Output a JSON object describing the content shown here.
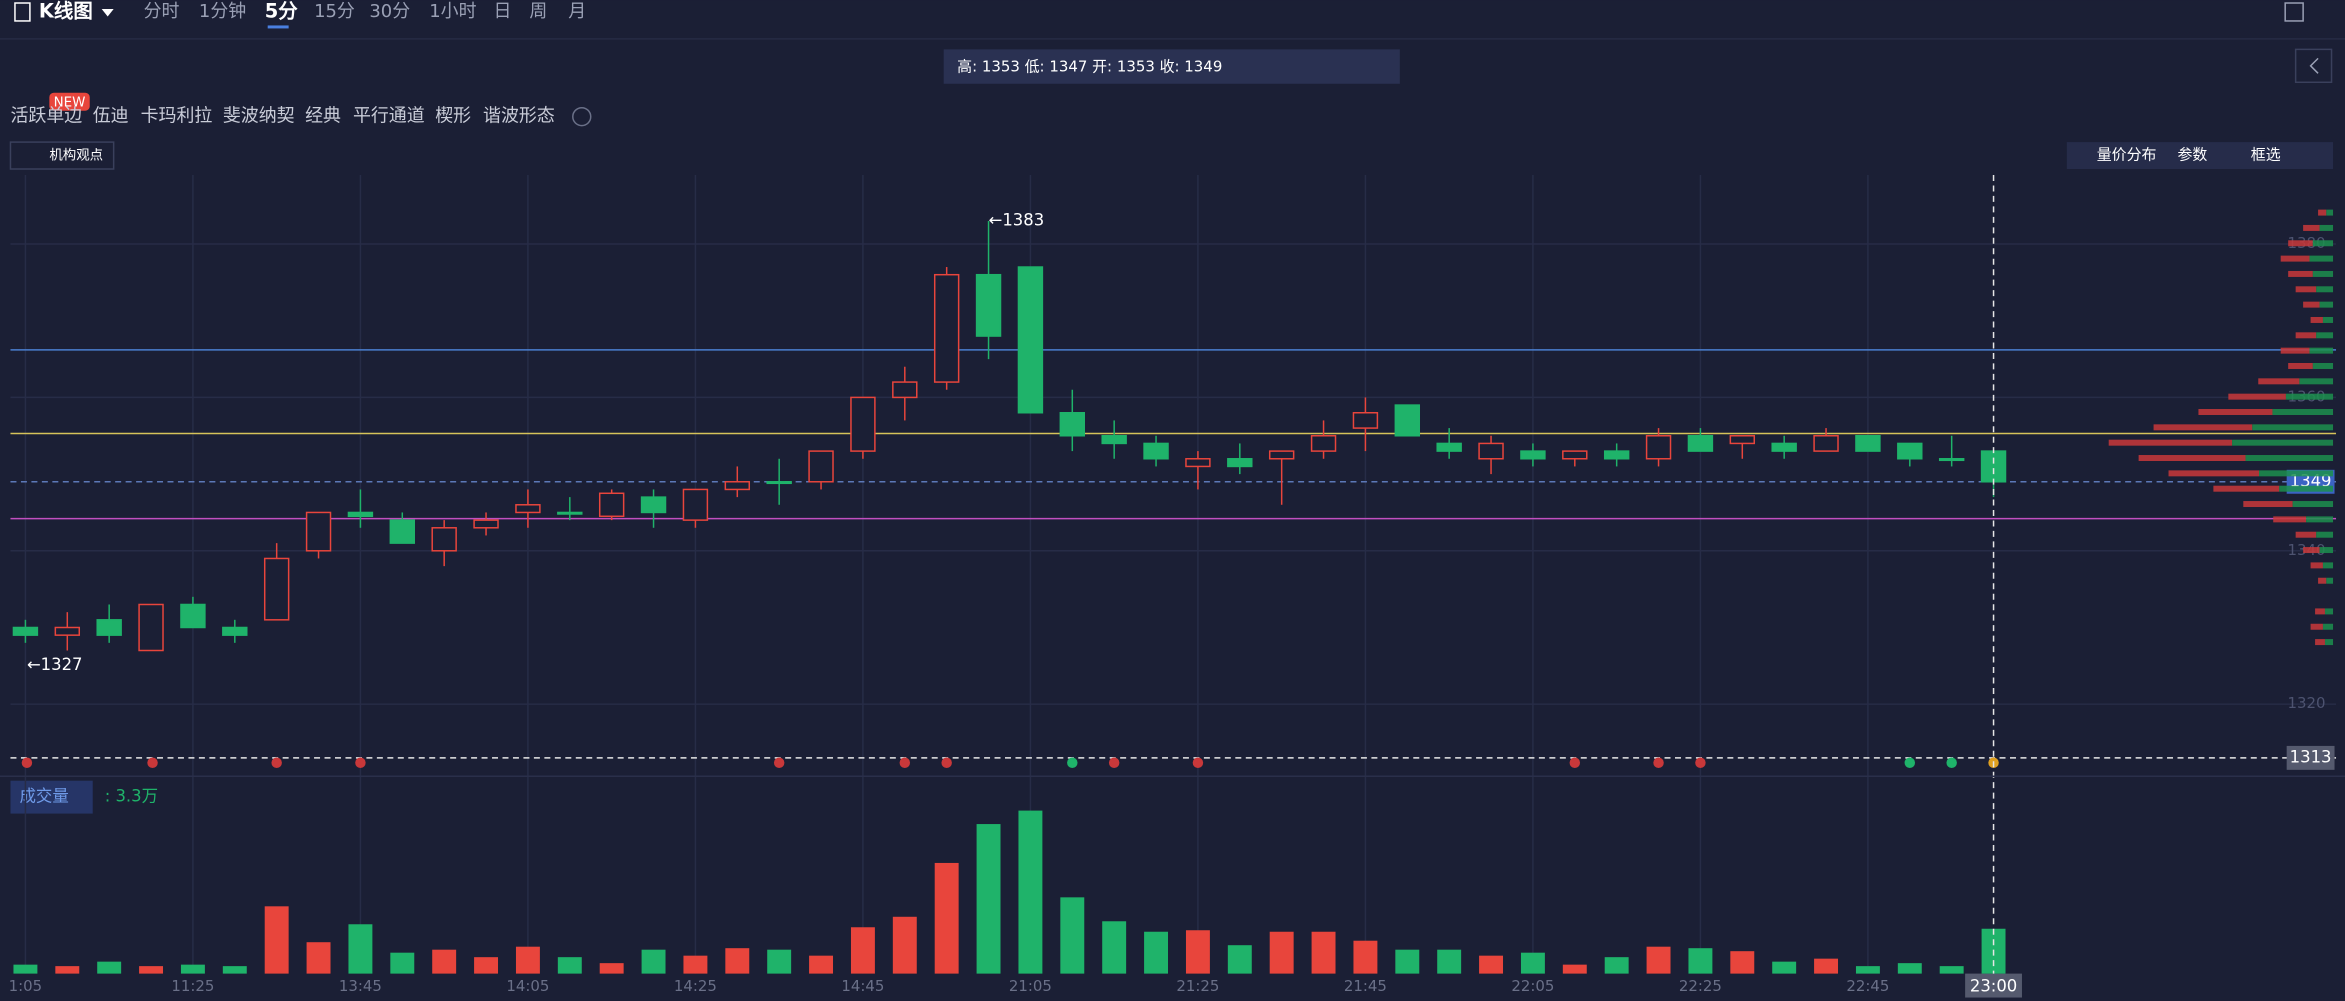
{
  "toolbar": {
    "title": "K线图",
    "tabs": [
      "分时",
      "1分钟",
      "5分",
      "15分",
      "30分",
      "1小时",
      "日",
      "周",
      "月"
    ],
    "active": "5分"
  },
  "info": "高: 1353 低: 1347 开: 1353 收: 1349",
  "indicators": {
    "badge": "NEW",
    "items": [
      "活跃单边",
      "伍迪",
      "卡玛利拉",
      "斐波纳契",
      "经典",
      "平行通道",
      "楔形",
      "谐波形态"
    ]
  },
  "opinion": "机构观点",
  "tools": [
    "量价分布",
    "参数",
    "框选"
  ],
  "volume_panel": {
    "title": "成交量",
    "value_label": ": 3.3万"
  },
  "chart_data": {
    "type": "candlestick",
    "categories": [
      "1:05",
      null,
      null,
      null,
      "11:25",
      null,
      null,
      null,
      "13:45",
      null,
      null,
      null,
      "14:05",
      null,
      null,
      null,
      "14:25",
      null,
      null,
      null,
      "14:45",
      null,
      null,
      null,
      "21:05",
      null,
      null,
      null,
      "21:25",
      null,
      null,
      null,
      "21:45",
      null,
      null,
      null,
      "22:05",
      null,
      null,
      null,
      "22:25",
      null,
      null,
      null,
      "22:45",
      null,
      null,
      "23:00"
    ],
    "open": [
      1330,
      1329,
      1331,
      1327,
      1333,
      1330,
      1331,
      1340,
      1345,
      1344,
      1340,
      1343,
      1345,
      1345,
      1344.5,
      1347,
      1344,
      1348,
      1349,
      1349,
      1353,
      1360,
      1362,
      1376,
      1377,
      1358,
      1355,
      1354,
      1351,
      1352,
      1352,
      1353,
      1356,
      1359,
      1354,
      1352,
      1353,
      1352,
      1353,
      1352,
      1355,
      1354,
      1354,
      1353,
      1355,
      1354,
      1352,
      1353
    ],
    "high": [
      1331,
      1332,
      1333,
      1333,
      1334,
      1331,
      1341,
      1345,
      1348,
      1345,
      1344,
      1345,
      1348,
      1347,
      1348,
      1348,
      1348,
      1351,
      1352,
      1353,
      1360,
      1364,
      1377,
      1383,
      1377,
      1361,
      1357,
      1355,
      1353,
      1354,
      1353,
      1357,
      1360,
      1359,
      1356,
      1355,
      1354,
      1353,
      1354,
      1356,
      1356,
      1355,
      1355,
      1356,
      1355,
      1354,
      1355,
      1353
    ],
    "low": [
      1328,
      1327,
      1328,
      1327,
      1330,
      1328,
      1331,
      1339,
      1343,
      1341,
      1338,
      1342,
      1343,
      1344,
      1344,
      1343,
      1343,
      1347,
      1346,
      1348,
      1352,
      1357,
      1361,
      1365,
      1358,
      1353,
      1352,
      1351,
      1348,
      1350,
      1346,
      1352,
      1353,
      1355,
      1352,
      1350,
      1351,
      1351,
      1351,
      1351,
      1353,
      1352,
      1352,
      1353,
      1353,
      1351,
      1351,
      1347
    ],
    "close": [
      1329,
      1330,
      1329,
      1333,
      1330,
      1329,
      1339,
      1345,
      1344.5,
      1341,
      1343,
      1344,
      1346,
      1344.8,
      1347.5,
      1345,
      1348,
      1349,
      1348.8,
      1353,
      1360,
      1362,
      1376,
      1368,
      1358,
      1355,
      1354,
      1352,
      1352,
      1351,
      1353,
      1355,
      1358,
      1355,
      1353,
      1354,
      1352,
      1353,
      1352,
      1355,
      1353,
      1355,
      1353,
      1355,
      1353,
      1352,
      1351.8,
      1349
    ],
    "volume": [
      0.66,
      0.55,
      0.88,
      0.55,
      0.66,
      0.55,
      4.95,
      2.31,
      3.63,
      1.54,
      1.76,
      1.21,
      1.98,
      1.21,
      0.77,
      1.76,
      1.32,
      1.87,
      1.76,
      1.32,
      3.41,
      4.18,
      8.14,
      11,
      11.99,
      5.61,
      3.85,
      3.08,
      3.19,
      2.09,
      3.08,
      3.08,
      2.42,
      1.76,
      1.76,
      1.32,
      1.54,
      0.66,
      1.21,
      1.98,
      1.87,
      1.65,
      0.88,
      1.1,
      0.55,
      0.77,
      0.55,
      3.3
    ],
    "up_color": "#e8453c",
    "down_color": "#1fb36a",
    "ylim": [
      1311,
      1389
    ],
    "yticks": [
      1320,
      1340,
      1360,
      1380
    ],
    "grid": true,
    "annotations": [
      "←1383",
      "←1327"
    ],
    "lines": [
      {
        "value": 1366.2,
        "color": "#4a7fd0"
      },
      {
        "value": 1355.3,
        "color": "#d6c35a"
      },
      {
        "value": 1344.2,
        "color": "#c24fc0"
      },
      {
        "value": 1349,
        "color": "#5c78b8",
        "dashed": true,
        "labeled": true
      },
      {
        "value": 1313,
        "color": "#e6e6e6",
        "dashed": true,
        "labeled": true
      }
    ],
    "volume_profile": {
      "prices": [
        1384,
        1382,
        1380,
        1378,
        1376,
        1374,
        1372,
        1370,
        1368,
        1366,
        1364,
        1362,
        1360,
        1358,
        1356,
        1354,
        1352,
        1350,
        1348,
        1346,
        1344,
        1342,
        1340,
        1338,
        1336,
        1332,
        1330,
        1328
      ],
      "values": [
        10,
        20,
        30,
        35,
        30,
        25,
        20,
        15,
        25,
        35,
        30,
        50,
        70,
        90,
        120,
        150,
        130,
        110,
        80,
        60,
        40,
        25,
        20,
        15,
        10,
        12,
        15,
        12
      ]
    }
  }
}
